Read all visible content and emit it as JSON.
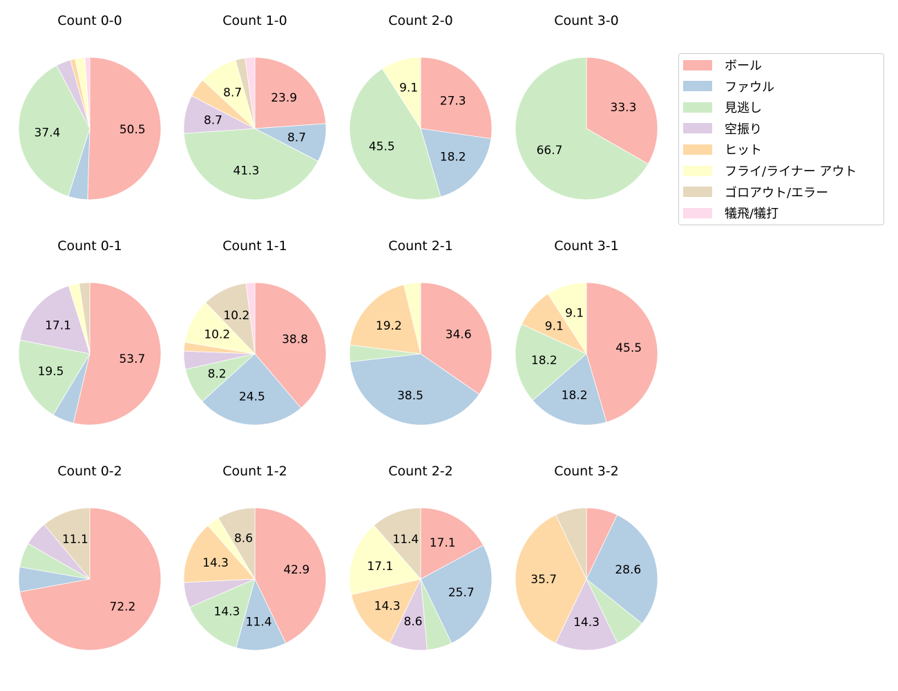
{
  "chart_data": [
    {
      "type": "pie",
      "title": "Count 0-0",
      "values": [
        50.5,
        4.4,
        37.4,
        3.3,
        1.1,
        2.2,
        0,
        1.1
      ]
    },
    {
      "type": "pie",
      "title": "Count 1-0",
      "values": [
        23.9,
        8.7,
        41.3,
        8.7,
        4.3,
        8.7,
        2.2,
        2.2
      ]
    },
    {
      "type": "pie",
      "title": "Count 2-0",
      "values": [
        27.3,
        18.2,
        45.5,
        0,
        0,
        9.1,
        0,
        0
      ]
    },
    {
      "type": "pie",
      "title": "Count 3-0",
      "values": [
        33.3,
        0,
        66.7,
        0,
        0,
        0,
        0,
        0
      ]
    },
    {
      "type": "pie",
      "title": "Count 0-1",
      "values": [
        53.7,
        4.9,
        19.5,
        17.1,
        0,
        2.4,
        2.4,
        0
      ]
    },
    {
      "type": "pie",
      "title": "Count 1-1",
      "values": [
        38.8,
        24.5,
        8.2,
        4.1,
        2.0,
        10.2,
        10.2,
        2.0
      ]
    },
    {
      "type": "pie",
      "title": "Count 2-1",
      "values": [
        34.6,
        38.5,
        3.8,
        0,
        19.2,
        3.8,
        0,
        0
      ]
    },
    {
      "type": "pie",
      "title": "Count 3-1",
      "values": [
        45.5,
        18.2,
        18.2,
        0,
        9.1,
        9.1,
        0,
        0
      ]
    },
    {
      "type": "pie",
      "title": "Count 0-2",
      "values": [
        72.2,
        5.6,
        5.6,
        5.6,
        0,
        0,
        11.1,
        0
      ]
    },
    {
      "type": "pie",
      "title": "Count 1-2",
      "values": [
        42.9,
        11.4,
        14.3,
        5.7,
        14.3,
        2.9,
        8.6,
        0
      ]
    },
    {
      "type": "pie",
      "title": "Count 2-2",
      "values": [
        17.1,
        25.7,
        5.7,
        8.6,
        14.3,
        17.1,
        11.4,
        0
      ]
    },
    {
      "type": "pie",
      "title": "Count 3-2",
      "values": [
        7.1,
        28.6,
        7.1,
        14.3,
        35.7,
        0,
        7.1,
        0
      ]
    }
  ],
  "legend": {
    "placement": "right",
    "labels": [
      "ボール",
      "ファウル",
      "見逃し",
      "空振り",
      "ヒット",
      "フライ/ライナー アウト",
      "ゴロアウト/エラー",
      "犠飛/犠打"
    ],
    "colors": [
      "#fbb4ae",
      "#b3cde3",
      "#ccebc5",
      "#decbe4",
      "#fed9a6",
      "#ffffcc",
      "#e5d8bd",
      "#fddaec"
    ]
  }
}
